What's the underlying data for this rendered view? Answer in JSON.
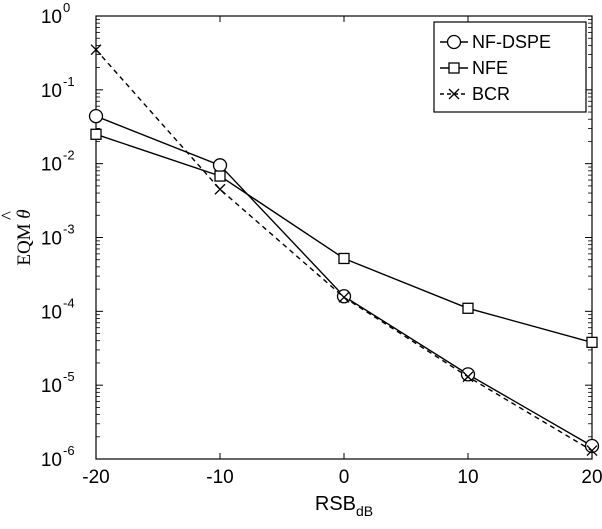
{
  "chart_data": {
    "type": "line",
    "xlabel": "RSB",
    "xlabel_sub": "dB",
    "ylabel": "EQM",
    "ylabel_symbol": "θ",
    "ylabel_accent": "^",
    "y_scale": "log",
    "xlim": [
      -20,
      20
    ],
    "ylim": [
      1e-06,
      1
    ],
    "x_ticks": [
      -20,
      -10,
      0,
      10,
      20
    ],
    "x_tick_labels": [
      "-20",
      "-10",
      "0",
      "10",
      "20"
    ],
    "y_ticks": [
      {
        "base": "10",
        "exp": "0",
        "value": 1
      },
      {
        "base": "10",
        "exp": "-1",
        "value": 0.1
      },
      {
        "base": "10",
        "exp": "-2",
        "value": 0.01
      },
      {
        "base": "10",
        "exp": "-3",
        "value": 0.001
      },
      {
        "base": "10",
        "exp": "-4",
        "value": 0.0001
      },
      {
        "base": "10",
        "exp": "-5",
        "value": 1e-05
      },
      {
        "base": "10",
        "exp": "-6",
        "value": 1e-06
      }
    ],
    "grid": false,
    "legend_position": "top-right",
    "x": [
      -20,
      -10,
      0,
      10,
      20
    ],
    "series": [
      {
        "name": "NF-DSPE",
        "marker": "circle",
        "line": "solid",
        "color": "#000000",
        "values": [
          0.044,
          0.0095,
          0.00016,
          1.4e-05,
          1.5e-06
        ]
      },
      {
        "name": "NFE",
        "marker": "square",
        "line": "solid",
        "color": "#000000",
        "values": [
          0.025,
          0.0068,
          0.00052,
          0.00011,
          3.8e-05
        ]
      },
      {
        "name": "BCR",
        "marker": "x",
        "line": "dashed",
        "color": "#000000",
        "values": [
          0.35,
          0.0045,
          0.000155,
          1.3e-05,
          1.3e-06
        ]
      }
    ]
  }
}
